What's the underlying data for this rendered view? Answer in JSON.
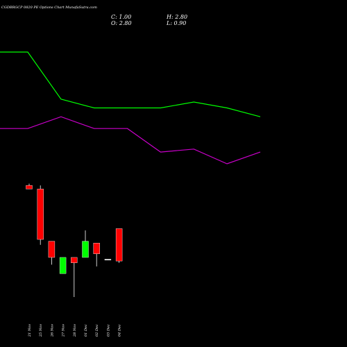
{
  "header": {
    "title": "CGDBRGCP 0820  PE Options  Chart MunafaSutra.com",
    "open_label": "O: 2.80",
    "high_label": "H: 2.80",
    "low_label": "L: 0.90",
    "close_label": "C: 1.00"
  },
  "colors": {
    "background": "#000000",
    "up": "#00ff00",
    "down": "#ff0000",
    "doji": "#ffffff",
    "wick": "#ffffff",
    "line_upper": "#00ff00",
    "line_lower": "#cc00cc"
  },
  "chart_data": {
    "type": "candlestick",
    "categories": [
      "21 Nov",
      "25 Nov",
      "26 Nov",
      "27 Nov",
      "28 Nov",
      "01 Dec",
      "02 Dec",
      "03 Dec",
      "04 Dec"
    ],
    "ohlc": [
      {
        "open": 5.2,
        "high": 5.3,
        "low": 5.0,
        "close": 5.0
      },
      {
        "open": 5.0,
        "high": 5.2,
        "low": 1.9,
        "close": 2.2
      },
      {
        "open": 2.1,
        "high": 2.1,
        "low": 0.8,
        "close": 1.2
      },
      {
        "open": 0.3,
        "high": 1.2,
        "low": 0.3,
        "close": 1.2
      },
      {
        "open": 1.2,
        "high": 1.2,
        "low": -1.0,
        "close": 0.9
      },
      {
        "open": 1.2,
        "high": 2.7,
        "low": 1.2,
        "close": 2.1
      },
      {
        "open": 2.0,
        "high": 2.0,
        "low": 0.7,
        "close": 1.4
      },
      {
        "open": 1.1,
        "high": 1.1,
        "low": 1.1,
        "close": 1.1
      },
      {
        "open": 2.8,
        "high": 2.8,
        "low": 0.9,
        "close": 1.0
      }
    ],
    "lines": [
      {
        "color": "#00ff00",
        "values": [
          6.8,
          6.8,
          5.2,
          4.9,
          4.9,
          4.9,
          5.1,
          4.9,
          4.6
        ]
      },
      {
        "color": "#cc00cc",
        "values": [
          4.2,
          4.2,
          4.6,
          4.2,
          4.2,
          3.4,
          3.5,
          3.0,
          3.4
        ]
      }
    ]
  }
}
